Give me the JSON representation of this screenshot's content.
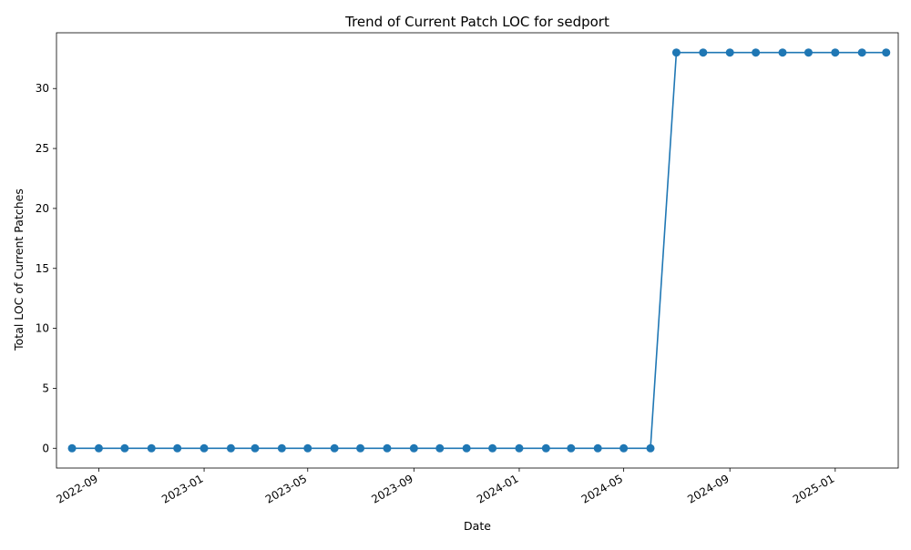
{
  "chart_data": {
    "type": "line",
    "title": "Trend of Current Patch LOC for sedport",
    "xlabel": "Date",
    "ylabel": "Total LOC of Current Patches",
    "x_tick_labels": [
      "2022-09",
      "2023-01",
      "2023-05",
      "2023-09",
      "2024-01",
      "2024-05",
      "2024-09",
      "2025-01"
    ],
    "y_tick_labels": [
      "0",
      "5",
      "10",
      "15",
      "20",
      "25",
      "30"
    ],
    "x_ticks": [
      "2022-09-01",
      "2023-01-01",
      "2023-05-01",
      "2023-09-01",
      "2024-01-01",
      "2024-05-01",
      "2024-09-01",
      "2025-01-01"
    ],
    "y_ticks": [
      0,
      5,
      10,
      15,
      20,
      25,
      30
    ],
    "xlim": [
      "2022-07-14",
      "2025-03-15"
    ],
    "ylim": [
      -1.65,
      34.65
    ],
    "grid": false,
    "line_color": "#1f77b4",
    "series": [
      {
        "x": [
          "2022-08-01",
          "2022-09-01",
          "2022-10-01",
          "2022-11-01",
          "2022-12-01",
          "2023-01-01",
          "2023-02-01",
          "2023-03-01",
          "2023-04-01",
          "2023-05-01",
          "2023-06-01",
          "2023-07-01",
          "2023-08-01",
          "2023-09-01",
          "2023-10-01",
          "2023-11-01",
          "2023-12-01",
          "2024-01-01",
          "2024-02-01",
          "2024-03-01",
          "2024-04-01",
          "2024-05-01",
          "2024-06-01",
          "2024-07-01",
          "2024-08-01",
          "2024-09-01",
          "2024-10-01",
          "2024-11-01",
          "2024-12-01",
          "2025-01-01",
          "2025-02-01",
          "2025-03-01"
        ],
        "values": [
          0,
          0,
          0,
          0,
          0,
          0,
          0,
          0,
          0,
          0,
          0,
          0,
          0,
          0,
          0,
          0,
          0,
          0,
          0,
          0,
          0,
          0,
          0,
          33,
          33,
          33,
          33,
          33,
          33,
          33,
          33,
          33
        ]
      }
    ]
  }
}
